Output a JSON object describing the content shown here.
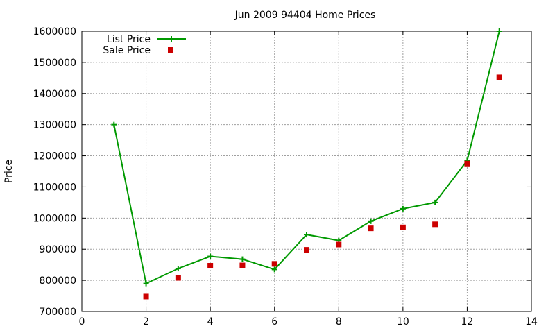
{
  "chart_data": {
    "type": "line",
    "title": "Jun 2009 94404 Home Prices",
    "xlabel": "",
    "ylabel": "Price",
    "xlim": [
      0,
      14
    ],
    "ylim": [
      700000,
      1600000
    ],
    "x_ticks": [
      "0",
      "2",
      "4",
      "6",
      "8",
      "10",
      "12",
      "14"
    ],
    "y_ticks": [
      "700000",
      "800000",
      "900000",
      "1000000",
      "1100000",
      "1200000",
      "1300000",
      "1400000",
      "1500000",
      "1600000"
    ],
    "grid": true,
    "legend_position": "top-left",
    "series": [
      {
        "name": "List Price",
        "style": "line-plus",
        "color": "#009900",
        "x": [
          1,
          2,
          3,
          4,
          5,
          6,
          7,
          8,
          9,
          10,
          11,
          12,
          13
        ],
        "y": [
          1300000,
          790000,
          838000,
          877000,
          868000,
          835000,
          947000,
          928000,
          990000,
          1030000,
          1050000,
          1185000,
          1600000
        ]
      },
      {
        "name": "Sale Price",
        "style": "square",
        "color": "#cc0000",
        "x": [
          2,
          3,
          4,
          5,
          6,
          7,
          8,
          9,
          10,
          11,
          12,
          13
        ],
        "y": [
          748000,
          808000,
          847000,
          848000,
          853000,
          898000,
          915000,
          967000,
          970000,
          980000,
          1175000,
          1452000
        ]
      }
    ]
  }
}
